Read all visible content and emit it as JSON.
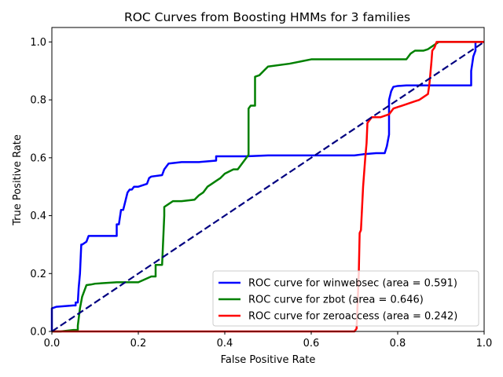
{
  "chart_data": {
    "type": "line",
    "title": "ROC Curves from Boosting HMMs for 3 families",
    "xlabel": "False Positive Rate",
    "ylabel": "True Positive Rate",
    "xlim": [
      0.0,
      1.0
    ],
    "ylim": [
      0.0,
      1.05
    ],
    "xticks": [
      "0.0",
      "0.2",
      "0.4",
      "0.6",
      "0.8",
      "1.0"
    ],
    "yticks": [
      "0.0",
      "0.2",
      "0.4",
      "0.6",
      "0.8",
      "1.0"
    ],
    "grid": false,
    "legend_position": "lower-right",
    "series": [
      {
        "name": "ROC curve for winwebsec (area = 0.591)",
        "color": "#0000ff",
        "x": [
          0,
          0,
          0.01,
          0.05,
          0.055,
          0.055,
          0.06,
          0.062,
          0.065,
          0.068,
          0.07,
          0.08,
          0.085,
          0.09,
          0.1,
          0.15,
          0.15,
          0.155,
          0.16,
          0.165,
          0.17,
          0.175,
          0.18,
          0.185,
          0.19,
          0.2,
          0.22,
          0.225,
          0.23,
          0.255,
          0.26,
          0.27,
          0.3,
          0.34,
          0.38,
          0.38,
          0.45,
          0.5,
          0.6,
          0.7,
          0.72,
          0.75,
          0.77,
          0.775,
          0.78,
          0.78,
          0.785,
          0.79,
          0.8,
          0.82,
          0.84,
          0.97,
          0.97,
          0.975,
          0.98,
          0.98,
          1.0
        ],
        "y": [
          0,
          0.08,
          0.085,
          0.09,
          0.09,
          0.1,
          0.1,
          0.15,
          0.2,
          0.3,
          0.3,
          0.31,
          0.33,
          0.33,
          0.33,
          0.33,
          0.37,
          0.37,
          0.42,
          0.42,
          0.45,
          0.48,
          0.49,
          0.49,
          0.5,
          0.5,
          0.51,
          0.53,
          0.535,
          0.54,
          0.56,
          0.58,
          0.585,
          0.585,
          0.59,
          0.605,
          0.605,
          0.608,
          0.608,
          0.608,
          0.612,
          0.616,
          0.616,
          0.64,
          0.68,
          0.8,
          0.83,
          0.845,
          0.848,
          0.85,
          0.85,
          0.85,
          0.9,
          0.95,
          0.97,
          1.0,
          1.0
        ]
      },
      {
        "name": "ROC curve for zbot (area = 0.646)",
        "color": "#008000",
        "x": [
          0,
          0.02,
          0.05,
          0.06,
          0.06,
          0.065,
          0.07,
          0.075,
          0.08,
          0.09,
          0.1,
          0.15,
          0.2,
          0.23,
          0.24,
          0.24,
          0.255,
          0.26,
          0.26,
          0.27,
          0.28,
          0.29,
          0.3,
          0.33,
          0.34,
          0.35,
          0.36,
          0.37,
          0.38,
          0.39,
          0.4,
          0.42,
          0.43,
          0.455,
          0.455,
          0.46,
          0.47,
          0.47,
          0.48,
          0.49,
          0.5,
          0.55,
          0.6,
          0.7,
          0.82,
          0.825,
          0.83,
          0.84,
          0.86,
          0.87,
          0.88,
          0.895,
          0.9,
          0.92,
          0.95,
          1.0
        ],
        "y": [
          0,
          0,
          0.005,
          0.005,
          0.02,
          0.08,
          0.12,
          0.14,
          0.16,
          0.162,
          0.165,
          0.17,
          0.17,
          0.19,
          0.19,
          0.23,
          0.23,
          0.4,
          0.43,
          0.44,
          0.45,
          0.45,
          0.45,
          0.455,
          0.47,
          0.48,
          0.5,
          0.51,
          0.52,
          0.53,
          0.545,
          0.56,
          0.56,
          0.61,
          0.77,
          0.78,
          0.78,
          0.88,
          0.885,
          0.9,
          0.915,
          0.925,
          0.94,
          0.94,
          0.94,
          0.95,
          0.96,
          0.97,
          0.97,
          0.975,
          0.985,
          1.0,
          1.0,
          1.0,
          1.0,
          1.0
        ]
      },
      {
        "name": "ROC curve for zeroaccess (area = 0.242)",
        "color": "#ff0000",
        "x": [
          0,
          0.7,
          0.705,
          0.71,
          0.712,
          0.715,
          0.72,
          0.725,
          0.728,
          0.73,
          0.735,
          0.74,
          0.75,
          0.76,
          0.77,
          0.78,
          0.79,
          0.8,
          0.81,
          0.82,
          0.83,
          0.84,
          0.85,
          0.86,
          0.87,
          0.873,
          0.875,
          0.878,
          0.88,
          0.885,
          0.89,
          0.9,
          1.0
        ],
        "y": [
          0,
          0,
          0.01,
          0.2,
          0.34,
          0.35,
          0.5,
          0.6,
          0.65,
          0.72,
          0.73,
          0.74,
          0.74,
          0.74,
          0.745,
          0.75,
          0.77,
          0.775,
          0.78,
          0.785,
          0.79,
          0.795,
          0.8,
          0.81,
          0.82,
          0.85,
          0.88,
          0.93,
          0.97,
          0.98,
          1.0,
          1.0,
          1.0
        ]
      },
      {
        "name": "",
        "color": "#000080",
        "style": "dashed",
        "x": [
          0,
          1
        ],
        "y": [
          0,
          1
        ]
      }
    ]
  }
}
